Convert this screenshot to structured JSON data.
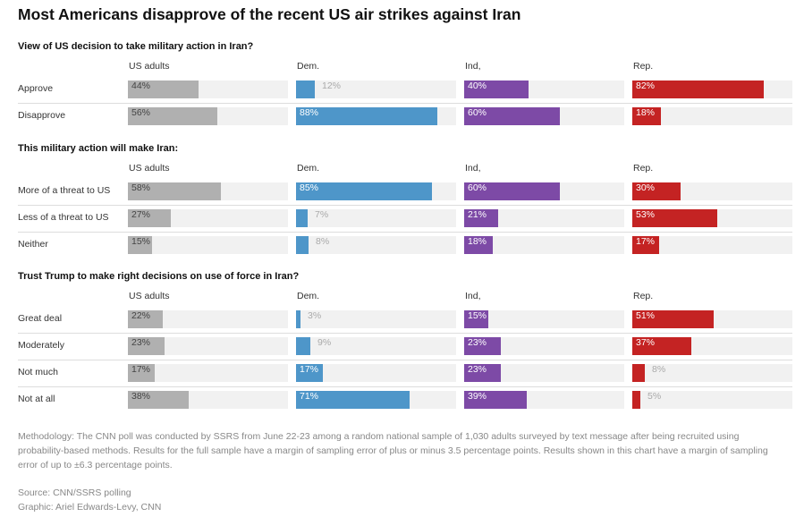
{
  "title": "Most Americans disapprove of the recent US air strikes against Iran",
  "columns": [
    {
      "label": "US adults",
      "color": "#b0b0b0"
    },
    {
      "label": "Dem.",
      "color": "#4e96c9"
    },
    {
      "label": "Ind,",
      "color": "#7d4aa6"
    },
    {
      "label": "Rep.",
      "color": "#c42323"
    }
  ],
  "chart_data": {
    "type": "bar",
    "title": "Most Americans disapprove of the recent US air strikes against Iran",
    "unit": "%",
    "xlim": [
      0,
      100
    ],
    "groups": [
      "US adults",
      "Dem.",
      "Ind,",
      "Rep."
    ],
    "questions": [
      {
        "question": "View of US decision to take military action in Iran?",
        "categories": [
          "Approve",
          "Disapprove"
        ],
        "series": [
          {
            "name": "US adults",
            "values": [
              44,
              56
            ]
          },
          {
            "name": "Dem.",
            "values": [
              12,
              88
            ]
          },
          {
            "name": "Ind,",
            "values": [
              40,
              60
            ]
          },
          {
            "name": "Rep.",
            "values": [
              82,
              18
            ]
          }
        ]
      },
      {
        "question": "This military action will make Iran:",
        "categories": [
          "More of a threat to US",
          "Less of a threat to US",
          "Neither"
        ],
        "series": [
          {
            "name": "US adults",
            "values": [
              58,
              27,
              15
            ]
          },
          {
            "name": "Dem.",
            "values": [
              85,
              7,
              8
            ]
          },
          {
            "name": "Ind,",
            "values": [
              60,
              21,
              18
            ]
          },
          {
            "name": "Rep.",
            "values": [
              30,
              53,
              17
            ]
          }
        ]
      },
      {
        "question": "Trust Trump to make right decisions on use of force in Iran?",
        "categories": [
          "Great deal",
          "Moderately",
          "Not much",
          "Not at all"
        ],
        "series": [
          {
            "name": "US adults",
            "values": [
              22,
              23,
              17,
              38
            ]
          },
          {
            "name": "Dem.",
            "values": [
              3,
              9,
              17,
              71
            ]
          },
          {
            "name": "Ind,",
            "values": [
              15,
              23,
              23,
              39
            ]
          },
          {
            "name": "Rep.",
            "values": [
              51,
              37,
              8,
              5
            ]
          }
        ]
      }
    ]
  },
  "footer": {
    "methodology": "Methodology: The CNN poll was conducted by SSRS from June 22-23 among a random national sample of 1,030 adults surveyed by text message after being recruited using probability-based methods. Results for the full sample have a margin of sampling error of plus or minus 3.5 percentage points. Results shown in this chart have a margin of sampling error of up to ±6.3 percentage points.",
    "source": "Source: CNN/SSRS polling",
    "graphic": "Graphic: Ariel Edwards-Levy, CNN"
  }
}
